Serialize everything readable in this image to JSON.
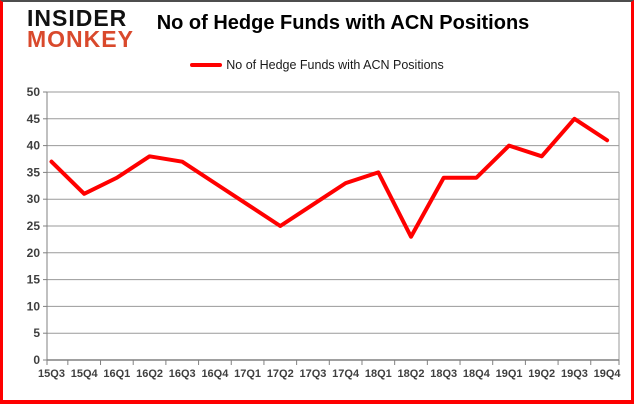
{
  "logo": {
    "line1": "INSIDER",
    "line2": "MONKEY"
  },
  "header": {
    "title": "No of Hedge Funds with ACN Positions"
  },
  "legend": {
    "label": "No of Hedge Funds with ACN Positions"
  },
  "colors": {
    "series_red": "#ff0000",
    "logo_black": "#111111",
    "logo_red": "#d9492c",
    "frame_border_red": "#fe0000",
    "frame_border_top_gray": "#4d4d4d",
    "gridline_gray": "#9a9a9a",
    "axis_gray": "#808080",
    "label_gray": "#3f3f3f"
  },
  "chart_data": {
    "type": "line",
    "title": "No of Hedge Funds with ACN Positions",
    "categories": [
      "15Q3",
      "15Q4",
      "16Q1",
      "16Q2",
      "16Q3",
      "16Q4",
      "17Q1",
      "17Q2",
      "17Q3",
      "17Q4",
      "18Q1",
      "18Q2",
      "18Q3",
      "18Q4",
      "19Q1",
      "19Q2",
      "19Q3",
      "19Q4"
    ],
    "series": [
      {
        "name": "No of Hedge Funds with ACN Positions",
        "color": "#ff0000",
        "values": [
          37,
          31,
          34,
          38,
          37,
          33,
          29,
          25,
          29,
          33,
          35,
          23,
          34,
          34,
          40,
          38,
          45,
          41
        ]
      }
    ],
    "xlabel": "",
    "ylabel": "",
    "ylim": [
      0,
      50
    ],
    "ytick_interval": 5,
    "grid": "horizontal",
    "legend_position": "top"
  }
}
